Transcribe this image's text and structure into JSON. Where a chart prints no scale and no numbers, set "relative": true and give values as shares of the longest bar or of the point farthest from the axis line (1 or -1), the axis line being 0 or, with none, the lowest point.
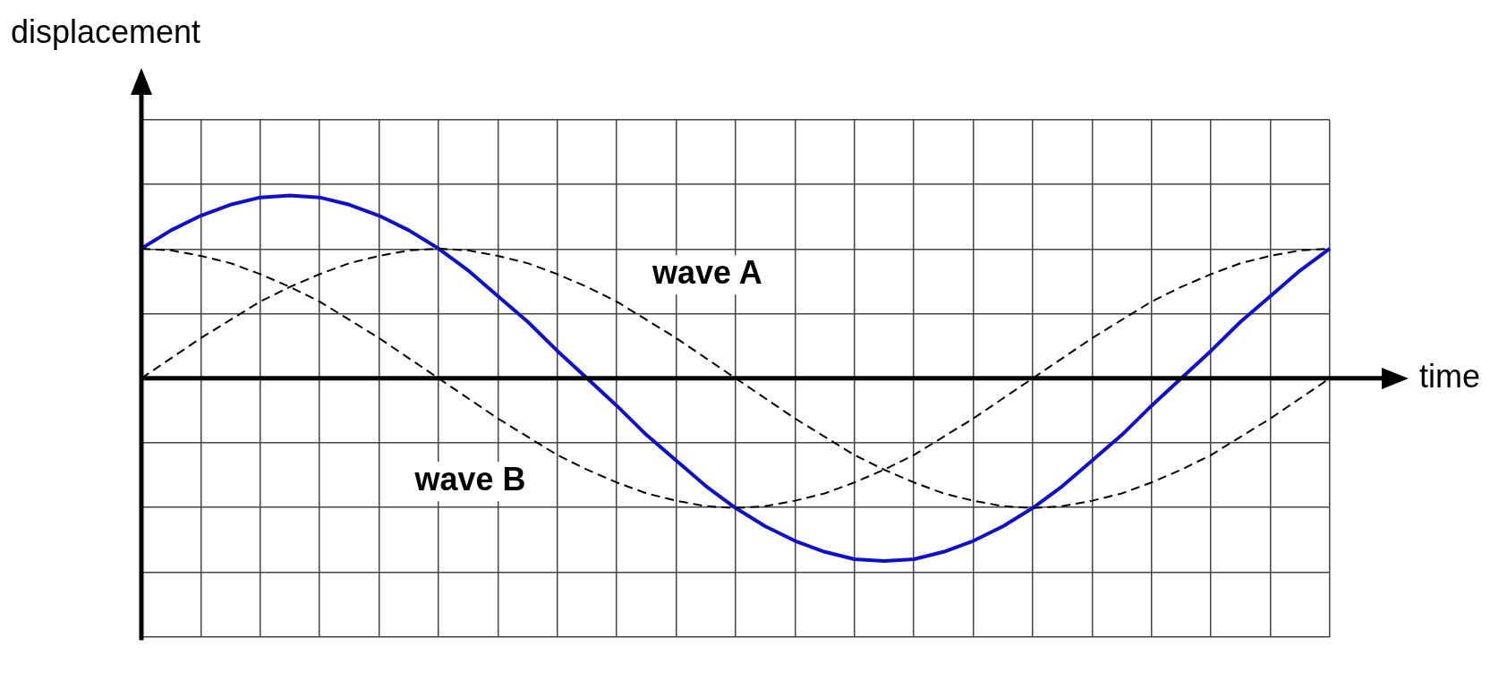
{
  "chart_data": {
    "type": "line",
    "xlabel": "time",
    "ylabel": "displacement",
    "relative": true,
    "grid": true,
    "legend": false,
    "marker": "none",
    "categories": [
      null,
      null,
      null,
      null,
      null,
      null,
      null,
      null,
      null,
      null,
      null,
      null,
      null,
      null,
      null,
      null,
      null,
      null,
      null,
      null,
      null,
      null,
      null,
      null,
      null,
      null,
      null,
      null,
      null,
      null,
      null,
      null,
      null,
      null,
      null,
      null,
      null,
      null,
      null,
      null,
      null
    ],
    "series": [
      {
        "name": "wave A",
        "color": "#000000",
        "line_style": "dashed",
        "values": [
          0,
          0.11,
          0.22,
          0.32,
          0.42,
          0.5,
          0.57,
          0.63,
          0.67,
          0.7,
          0.71,
          0.7,
          0.67,
          0.63,
          0.57,
          0.5,
          0.42,
          0.32,
          0.22,
          0.11,
          0,
          -0.11,
          -0.22,
          -0.32,
          -0.42,
          -0.5,
          -0.57,
          -0.63,
          -0.67,
          -0.7,
          -0.71,
          -0.7,
          -0.67,
          -0.63,
          -0.57,
          -0.5,
          -0.42,
          -0.32,
          -0.22,
          -0.11,
          0
        ]
      },
      {
        "name": "wave B",
        "color": "#000000",
        "line_style": "dashed",
        "values": [
          0.71,
          0.7,
          0.67,
          0.63,
          0.57,
          0.5,
          0.42,
          0.32,
          0.22,
          0.11,
          0,
          -0.11,
          -0.22,
          -0.32,
          -0.42,
          -0.5,
          -0.57,
          -0.63,
          -0.67,
          -0.7,
          -0.71,
          -0.7,
          -0.67,
          -0.63,
          -0.57,
          -0.5,
          -0.42,
          -0.32,
          -0.22,
          -0.11,
          0,
          0.11,
          0.22,
          0.32,
          0.42,
          0.5,
          0.57,
          0.63,
          0.67,
          0.7,
          0.71
        ]
      },
      {
        "color": "#1010c8",
        "line_style": "solid",
        "values": [
          0.71,
          0.81,
          0.89,
          0.95,
          0.99,
          1.0,
          0.99,
          0.95,
          0.89,
          0.81,
          0.71,
          0.59,
          0.45,
          0.31,
          0.15,
          0,
          -0.15,
          -0.31,
          -0.45,
          -0.59,
          -0.71,
          -0.81,
          -0.89,
          -0.95,
          -0.99,
          -1.0,
          -0.99,
          -0.95,
          -0.89,
          -0.81,
          -0.71,
          -0.59,
          -0.45,
          -0.31,
          -0.15,
          0,
          0.15,
          0.31,
          0.45,
          0.59,
          0.71
        ]
      }
    ]
  }
}
